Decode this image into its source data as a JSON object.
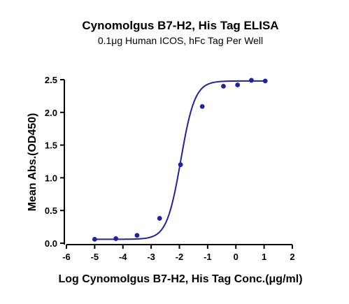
{
  "chart_data": {
    "type": "scatter",
    "title": "Cynomolgus B7-H2, His Tag ELISA",
    "subtitle": "0.1μg Human ICOS, hFc Tag Per Well",
    "xlabel": "Log Cynomolgus B7-H2, His Tag Conc.(μg/ml)",
    "ylabel": "Mean Abs.(OD450)",
    "xlim": [
      -6,
      2
    ],
    "ylim": [
      0,
      2.5
    ],
    "xticks": [
      "-6",
      "-5",
      "-4",
      "-3",
      "-2",
      "-1",
      "0",
      "1",
      "2"
    ],
    "yticks": [
      "0.0",
      "0.5",
      "1.0",
      "1.5",
      "2.0",
      "2.5"
    ],
    "grid": false,
    "series": [
      {
        "x": [
          -5.0,
          -4.25,
          -3.5,
          -2.7,
          -1.96,
          -1.19,
          -0.44,
          0.06,
          0.55,
          1.04
        ],
        "y": [
          0.06,
          0.07,
          0.12,
          0.38,
          1.2,
          2.09,
          2.4,
          2.42,
          2.49,
          2.48
        ]
      }
    ],
    "fit": {
      "model": "4PL",
      "bottom": 0.06,
      "top": 2.48,
      "logEC50": -1.95,
      "hill": 1.75,
      "color": "#1f22a6"
    },
    "point_color": "#1f22a6"
  }
}
